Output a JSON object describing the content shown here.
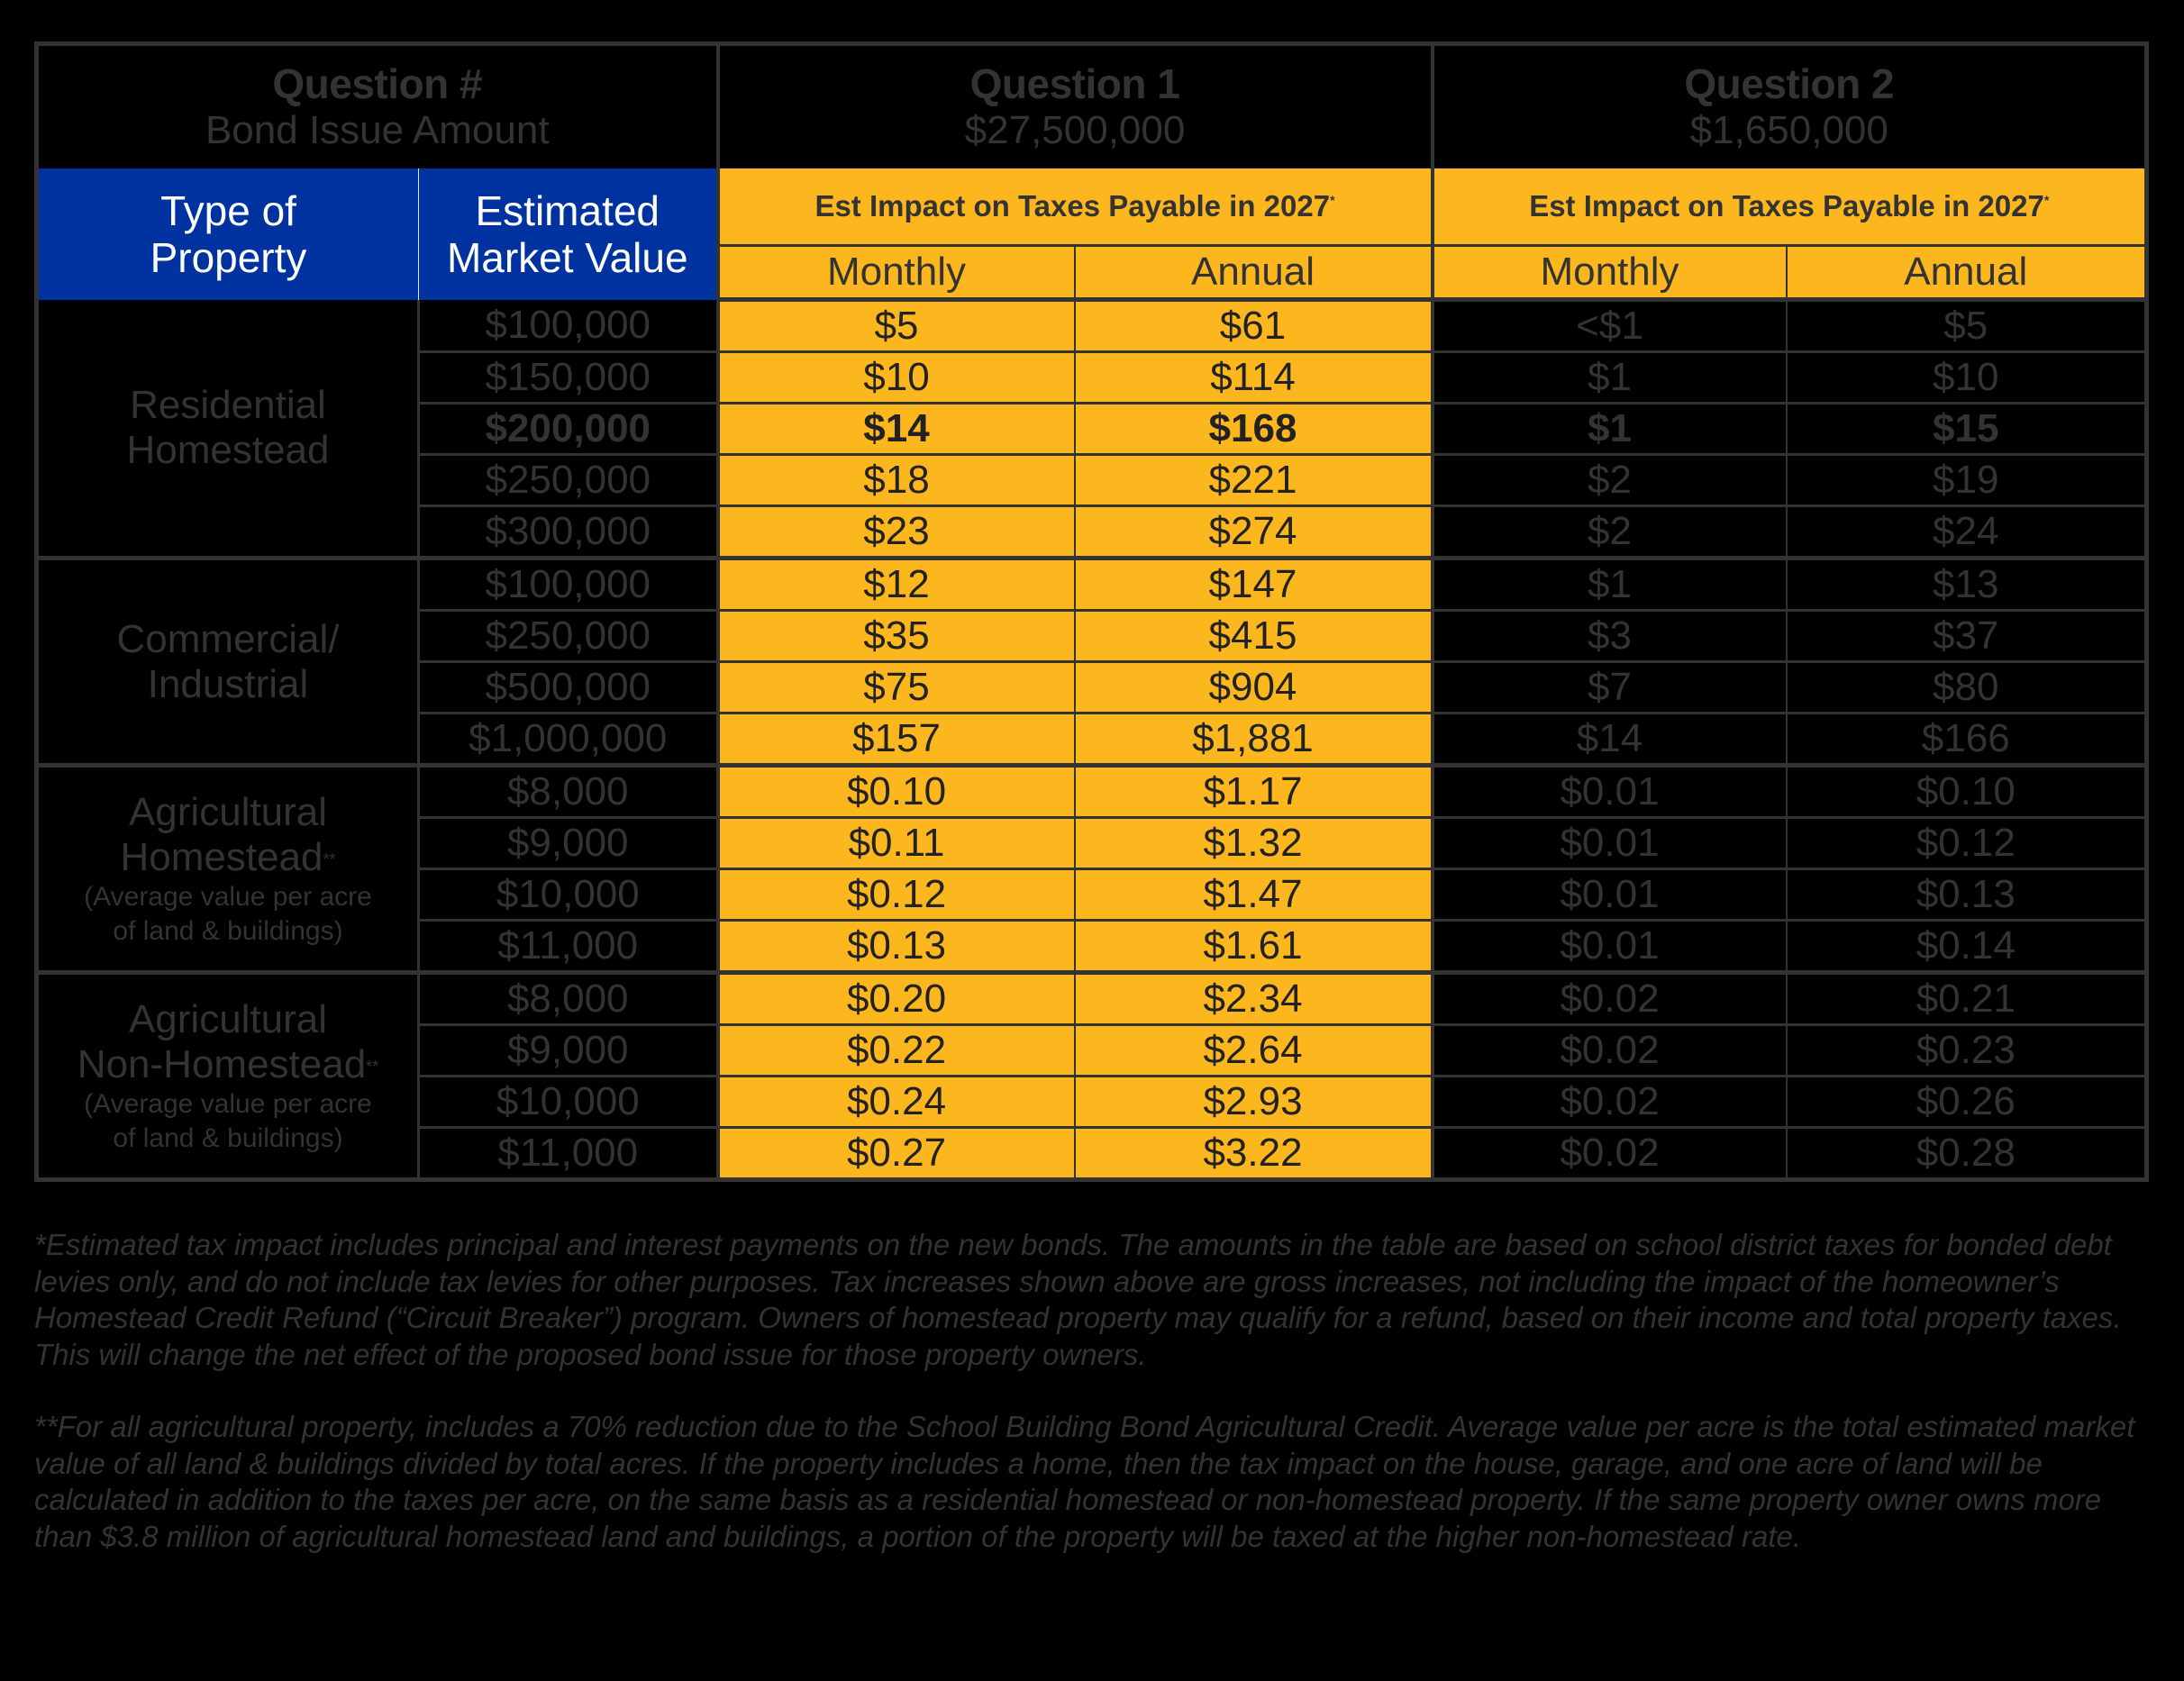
{
  "header": {
    "col_label_title": "Question #",
    "col_label_sub": "Bond Issue Amount",
    "questions": [
      {
        "title": "Question 1",
        "amount": "$27,500,000",
        "impact_label": "Est Impact on Taxes Payable in 2027",
        "impact_mark": "*",
        "monthly": "Monthly",
        "annual": "Annual"
      },
      {
        "title": "Question 2",
        "amount": "$1,650,000",
        "impact_label": "Est Impact on Taxes Payable in 2027",
        "impact_mark": "*",
        "monthly": "Monthly",
        "annual": "Annual"
      }
    ],
    "type_of_property_l1": "Type of",
    "type_of_property_l2": "Property",
    "market_value_l1": "Estimated",
    "market_value_l2": "Market Value"
  },
  "colors": {
    "background": "#000000",
    "blue_header": "#0033A0",
    "yellow": "#FDB71E",
    "text_dark": "#333333",
    "grid": "#333333"
  },
  "sections": [
    {
      "name_l1": "Residential",
      "name_l2": "Homestead",
      "name_mark": "",
      "note_l1": "",
      "note_l2": "",
      "rows": [
        {
          "value": "$100,000",
          "q1_monthly": "$5",
          "q1_annual": "$61",
          "q2_monthly": "<$1",
          "q2_annual": "$5",
          "bold": false
        },
        {
          "value": "$150,000",
          "q1_monthly": "$10",
          "q1_annual": "$114",
          "q2_monthly": "$1",
          "q2_annual": "$10",
          "bold": false
        },
        {
          "value": "$200,000",
          "q1_monthly": "$14",
          "q1_annual": "$168",
          "q2_monthly": "$1",
          "q2_annual": "$15",
          "bold": true
        },
        {
          "value": "$250,000",
          "q1_monthly": "$18",
          "q1_annual": "$221",
          "q2_monthly": "$2",
          "q2_annual": "$19",
          "bold": false
        },
        {
          "value": "$300,000",
          "q1_monthly": "$23",
          "q1_annual": "$274",
          "q2_monthly": "$2",
          "q2_annual": "$24",
          "bold": false
        }
      ]
    },
    {
      "name_l1": "Commercial/",
      "name_l2": "Industrial",
      "name_mark": "",
      "note_l1": "",
      "note_l2": "",
      "rows": [
        {
          "value": "$100,000",
          "q1_monthly": "$12",
          "q1_annual": "$147",
          "q2_monthly": "$1",
          "q2_annual": "$13",
          "bold": false
        },
        {
          "value": "$250,000",
          "q1_monthly": "$35",
          "q1_annual": "$415",
          "q2_monthly": "$3",
          "q2_annual": "$37",
          "bold": false
        },
        {
          "value": "$500,000",
          "q1_monthly": "$75",
          "q1_annual": "$904",
          "q2_monthly": "$7",
          "q2_annual": "$80",
          "bold": false
        },
        {
          "value": "$1,000,000",
          "q1_monthly": "$157",
          "q1_annual": "$1,881",
          "q2_monthly": "$14",
          "q2_annual": "$166",
          "bold": false
        }
      ]
    },
    {
      "name_l1": "Agricultural",
      "name_l2": "Homestead",
      "name_mark": "**",
      "note_l1": "(Average value per acre",
      "note_l2": "of land & buildings)",
      "rows": [
        {
          "value": "$8,000",
          "q1_monthly": "$0.10",
          "q1_annual": "$1.17",
          "q2_monthly": "$0.01",
          "q2_annual": "$0.10",
          "bold": false
        },
        {
          "value": "$9,000",
          "q1_monthly": "$0.11",
          "q1_annual": "$1.32",
          "q2_monthly": "$0.01",
          "q2_annual": "$0.12",
          "bold": false
        },
        {
          "value": "$10,000",
          "q1_monthly": "$0.12",
          "q1_annual": "$1.47",
          "q2_monthly": "$0.01",
          "q2_annual": "$0.13",
          "bold": false
        },
        {
          "value": "$11,000",
          "q1_monthly": "$0.13",
          "q1_annual": "$1.61",
          "q2_monthly": "$0.01",
          "q2_annual": "$0.14",
          "bold": false
        }
      ]
    },
    {
      "name_l1": "Agricultural",
      "name_l2": "Non-Homestead",
      "name_mark": "**",
      "note_l1": "(Average value per acre",
      "note_l2": "of land & buildings)",
      "rows": [
        {
          "value": "$8,000",
          "q1_monthly": "$0.20",
          "q1_annual": "$2.34",
          "q2_monthly": "$0.02",
          "q2_annual": "$0.21",
          "bold": false
        },
        {
          "value": "$9,000",
          "q1_monthly": "$0.22",
          "q1_annual": "$2.64",
          "q2_monthly": "$0.02",
          "q2_annual": "$0.23",
          "bold": false
        },
        {
          "value": "$10,000",
          "q1_monthly": "$0.24",
          "q1_annual": "$2.93",
          "q2_monthly": "$0.02",
          "q2_annual": "$0.26",
          "bold": false
        },
        {
          "value": "$11,000",
          "q1_monthly": "$0.27",
          "q1_annual": "$3.22",
          "q2_monthly": "$0.02",
          "q2_annual": "$0.28",
          "bold": false
        }
      ]
    }
  ],
  "footnotes": [
    "*Estimated tax impact includes principal and interest payments on the new bonds. The amounts in the table are based on school district taxes for bonded debt levies only, and do not include tax levies for other purposes. Tax increases shown above are gross increases, not including the impact of the homeowner’s Homestead Credit Refund (“Circuit Breaker”) program. Owners of homestead property may qualify for a refund, based on their income and total property taxes. This will change the net effect of the proposed bond issue for those property owners.",
    "**For all agricultural property, includes a 70% reduction due to the School Building Bond Agricultural Credit. Average value per acre is the total estimated market value of all land & buildings divided by total acres. If the property includes a home, then the tax impact on the house, garage, and one acre of land will be calculated in addition to the taxes per acre, on the same basis as a residential homestead or non-homestead property. If the same property owner owns more than $3.8 million of agricultural homestead land and buildings, a portion of the property will be taxed at the higher non-homestead rate."
  ]
}
